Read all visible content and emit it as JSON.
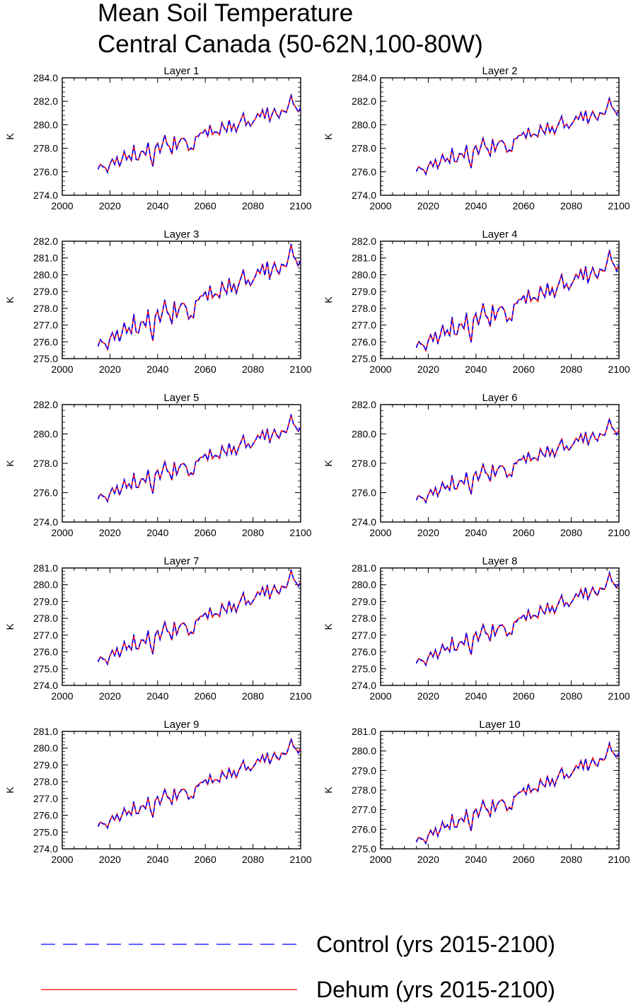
{
  "title_line1": "Mean Soil Temperature",
  "title_line2": "Central Canada (50-62N,100-80W)",
  "legend": [
    {
      "label": "Control (yrs 2015-2100)",
      "color": "#0000ff",
      "dash": "dashed"
    },
    {
      "label": "Dehum (yrs 2015-2100)",
      "color": "#ff0000",
      "dash": "solid"
    }
  ],
  "chart_data": {
    "type": "line",
    "x": {
      "start": 2015,
      "end": 2100,
      "step": 1
    },
    "xlim": [
      2000,
      2100
    ],
    "xticks": [
      2000,
      2020,
      2040,
      2060,
      2080,
      2100
    ],
    "ylabel": "K",
    "panels": [
      {
        "title": "Layer 1",
        "ylim": [
          274,
          284
        ],
        "yticks": [
          "274.0",
          "276.0",
          "278.0",
          "280.0",
          "282.0",
          "284.0"
        ],
        "trend": [
          276.5,
          281.5
        ]
      },
      {
        "title": "Layer 2",
        "ylim": [
          274,
          284
        ],
        "yticks": [
          "274.0",
          "276.0",
          "278.0",
          "280.0",
          "282.0",
          "284.0"
        ],
        "trend": [
          276.3,
          281.3
        ]
      },
      {
        "title": "Layer 3",
        "ylim": [
          275,
          282
        ],
        "yticks": [
          "275.0",
          "276.0",
          "277.0",
          "278.0",
          "279.0",
          "280.0",
          "281.0",
          "282.0"
        ],
        "trend": [
          276.0,
          280.9
        ]
      },
      {
        "title": "Layer 4",
        "ylim": [
          275,
          282
        ],
        "yticks": [
          "275.0",
          "276.0",
          "277.0",
          "278.0",
          "279.0",
          "280.0",
          "281.0",
          "282.0"
        ],
        "trend": [
          275.9,
          280.6
        ]
      },
      {
        "title": "Layer 5",
        "ylim": [
          274,
          282
        ],
        "yticks": [
          "274.0",
          "276.0",
          "278.0",
          "280.0",
          "282.0"
        ],
        "trend": [
          275.8,
          280.5
        ]
      },
      {
        "title": "Layer 6",
        "ylim": [
          274,
          282
        ],
        "yticks": [
          "274.0",
          "276.0",
          "278.0",
          "280.0",
          "282.0"
        ],
        "trend": [
          275.7,
          280.3
        ]
      },
      {
        "title": "Layer 7",
        "ylim": [
          274,
          281
        ],
        "yticks": [
          "274.0",
          "275.0",
          "276.0",
          "277.0",
          "278.0",
          "279.0",
          "280.0",
          "281.0"
        ],
        "trend": [
          275.6,
          280.2
        ]
      },
      {
        "title": "Layer 8",
        "ylim": [
          274,
          281
        ],
        "yticks": [
          "274.0",
          "275.0",
          "276.0",
          "277.0",
          "278.0",
          "279.0",
          "280.0",
          "281.0"
        ],
        "trend": [
          275.5,
          280.1
        ]
      },
      {
        "title": "Layer 9",
        "ylim": [
          274,
          281
        ],
        "yticks": [
          "274.0",
          "275.0",
          "276.0",
          "277.0",
          "278.0",
          "279.0",
          "280.0",
          "281.0"
        ],
        "trend": [
          275.5,
          280.0
        ]
      },
      {
        "title": "Layer 10",
        "ylim": [
          275,
          281
        ],
        "yticks": [
          "275.0",
          "276.0",
          "277.0",
          "278.0",
          "279.0",
          "280.0",
          "281.0"
        ],
        "trend": [
          275.5,
          279.9
        ]
      }
    ],
    "series": [
      {
        "name": "Control (yrs 2015-2100)"
      },
      {
        "name": "Dehum (yrs 2015-2100)"
      }
    ],
    "anomaly_pattern": [
      -0.3,
      0.1,
      -0.2,
      -0.3,
      -0.8,
      -0.1,
      0.2,
      -0.3,
      0.3,
      -0.6,
      -0.1,
      0.6,
      -0.2,
      0.1,
      -0.4,
      0.9,
      -0.4,
      -0.5,
      0.2,
      0.1,
      -0.3,
      0.8,
      -0.6,
      -1.4,
      0.1,
      0.5,
      -0.4,
      0.2,
      1.0,
      0.1,
      -0.2,
      -0.8,
      0.6,
      -0.5,
      0.0,
      0.3,
      0.2,
      -0.1,
      -0.9,
      -0.8,
      -1.0,
      0.1,
      0.0,
      0.3,
      0.2,
      0.5,
      -0.2,
      0.7,
      -0.1,
      0.0,
      -0.1,
      -0.3,
      0.6,
      0.1,
      -0.3,
      0.7,
      -0.3,
      0.2,
      -0.5,
      0.0,
      0.4,
      0.9,
      -0.2,
      0.1,
      -0.4,
      -0.1,
      0.1,
      0.5,
      0.2,
      0.7,
      -0.1,
      0.8,
      -0.5,
      0.1,
      0.5,
      0.0,
      -0.4,
      0.2,
      0.1,
      -0.1,
      0.5,
      1.3,
      0.4,
      0.1,
      -0.4,
      0.0
    ],
    "dehum_offset": [
      0.05,
      -0.05,
      0.08,
      -0.03,
      0.06,
      -0.07,
      0.04,
      0.02,
      -0.06,
      0.05
    ]
  }
}
